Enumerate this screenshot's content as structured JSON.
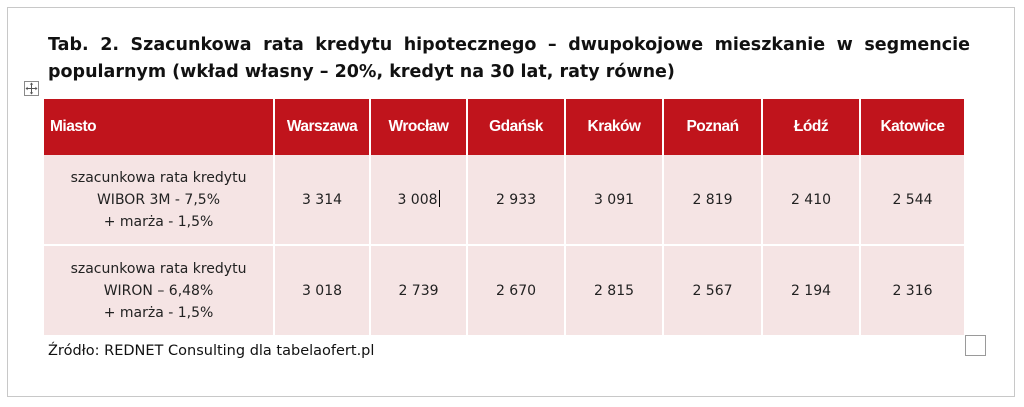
{
  "caption": "Tab. 2. Szacunkowa rata kredytu hipotecznego – dwupokojowe mieszkanie w segmencie popularnym (wkład własny – 20%, kredyt na 30 lat, raty równe)",
  "table": {
    "headers": [
      "Miasto",
      "Warszawa",
      "Wrocław",
      "Gdańsk",
      "Kraków",
      "Poznań",
      "Łódź",
      "Katowice"
    ],
    "rows": [
      {
        "label_lines": [
          "szacunkowa rata kredytu",
          "WIBOR 3M - 7,5%",
          "+ marża - 1,5%"
        ],
        "values": [
          "3 314",
          "3 008",
          "2 933",
          "3 091",
          "2 819",
          "2 410",
          "2 544"
        ]
      },
      {
        "label_lines": [
          "szacunkowa rata kredytu",
          "WIRON – 6,48%",
          "+ marża - 1,5%"
        ],
        "values": [
          "3 018",
          "2 739",
          "2 670",
          "2 815",
          "2 567",
          "2 194",
          "2 316"
        ]
      }
    ],
    "colors": {
      "header_bg": "#c0141c",
      "header_text": "#ffffff",
      "cell_bg": "#f5e4e4"
    }
  },
  "source": "Źródło: REDNET Consulting dla tabelaofert.pl",
  "icons": {
    "move_handle": "move-arrows-icon",
    "resize_box": "resize-box"
  }
}
